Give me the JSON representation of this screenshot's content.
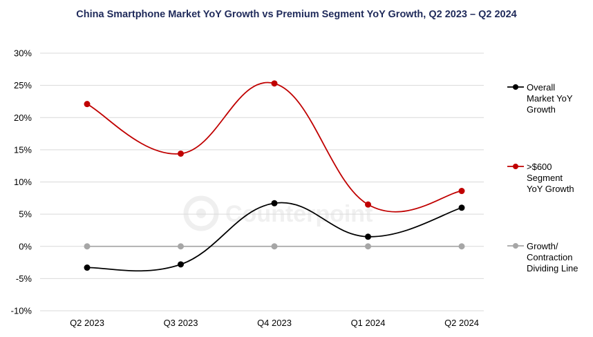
{
  "chart_data": {
    "type": "line",
    "title": "China Smartphone Market YoY Growth vs Premium Segment YoY Growth, Q2 2023 – Q2 2024",
    "xlabel": "",
    "ylabel": "",
    "categories": [
      "Q2 2023",
      "Q3 2023",
      "Q4 2023",
      "Q1 2024",
      "Q2 2024"
    ],
    "y_ticks": [
      "30%",
      "25%",
      "20%",
      "15%",
      "10%",
      "5%",
      "0%",
      "-5%",
      "-10%"
    ],
    "ylim": [
      -10,
      30
    ],
    "grid": "horizontal",
    "legend_position": "right",
    "series": [
      {
        "name": "Overall Market YoY Growth",
        "label_lines": [
          "Overall",
          "Market YoY",
          "Growth"
        ],
        "values": [
          -3.3,
          -2.8,
          6.7,
          1.5,
          6.0
        ],
        "color": "#000000"
      },
      {
        "name": ">$600 Segment YoY Growth",
        "label_lines": [
          ">$600",
          "Segment",
          "YoY Growth"
        ],
        "values": [
          22.1,
          14.4,
          25.3,
          6.5,
          8.6
        ],
        "color": "#c00000"
      },
      {
        "name": "Growth/ Contraction Dividing Line",
        "label_lines": [
          "Growth/",
          "Contraction",
          "Dividing Line"
        ],
        "values": [
          0,
          0,
          0,
          0,
          0
        ],
        "color": "#a6a6a6"
      }
    ]
  },
  "watermark": {
    "text": "Counterpoint",
    "icon": "counterpoint-logo-icon"
  }
}
